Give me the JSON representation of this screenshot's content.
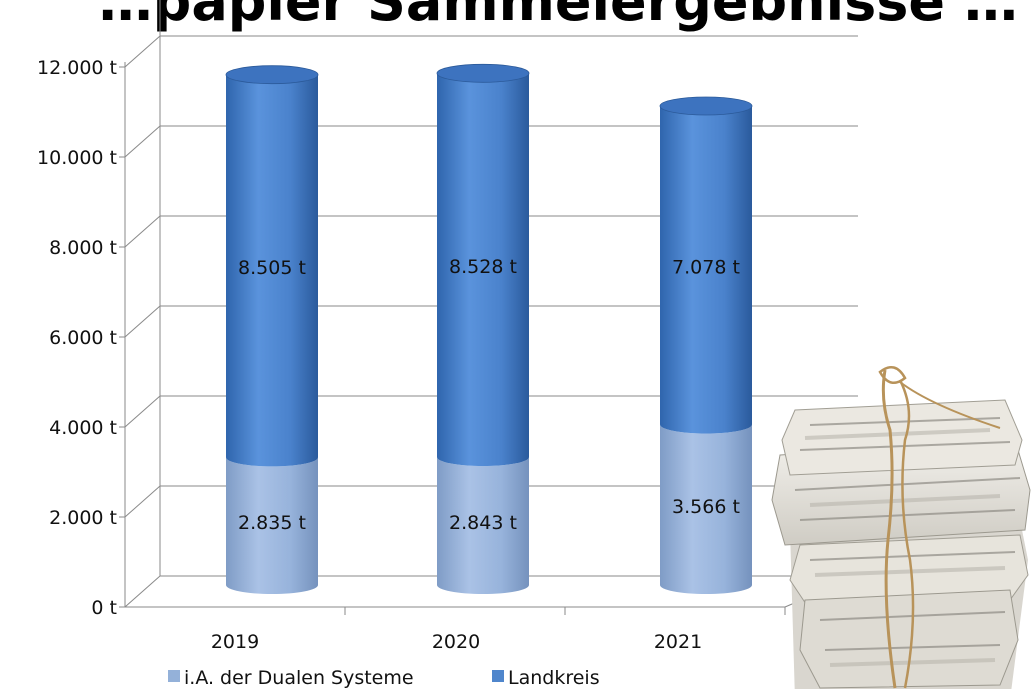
{
  "chart_data": {
    "type": "bar",
    "stacked": true,
    "style": "3d-cylinder",
    "title": "…papier Sammelergebnisse … (",
    "categories": [
      "2019",
      "2020",
      "2021"
    ],
    "series": [
      {
        "name": "i.A. der Dualen Systeme",
        "values": [
          2835,
          2843,
          3566
        ],
        "labels": [
          "2.835 t",
          "2.843 t",
          "3.566 t"
        ],
        "color": "#94b1d9"
      },
      {
        "name": "Landkreis",
        "values": [
          8505,
          8528,
          7078
        ],
        "labels": [
          "8.505 t",
          "8.528 t",
          "7.078 t"
        ],
        "color": "#4f86cc"
      }
    ],
    "y_ticks": [
      "0 t",
      "2.000 t",
      "4.000 t",
      "6.000 t",
      "8.000 t",
      "10.000 t",
      "12.000 t"
    ],
    "ylim": [
      0,
      12000
    ],
    "grid": true,
    "legend_position": "bottom-left"
  },
  "image": {
    "icon": "newspaper-bundle-icon"
  }
}
